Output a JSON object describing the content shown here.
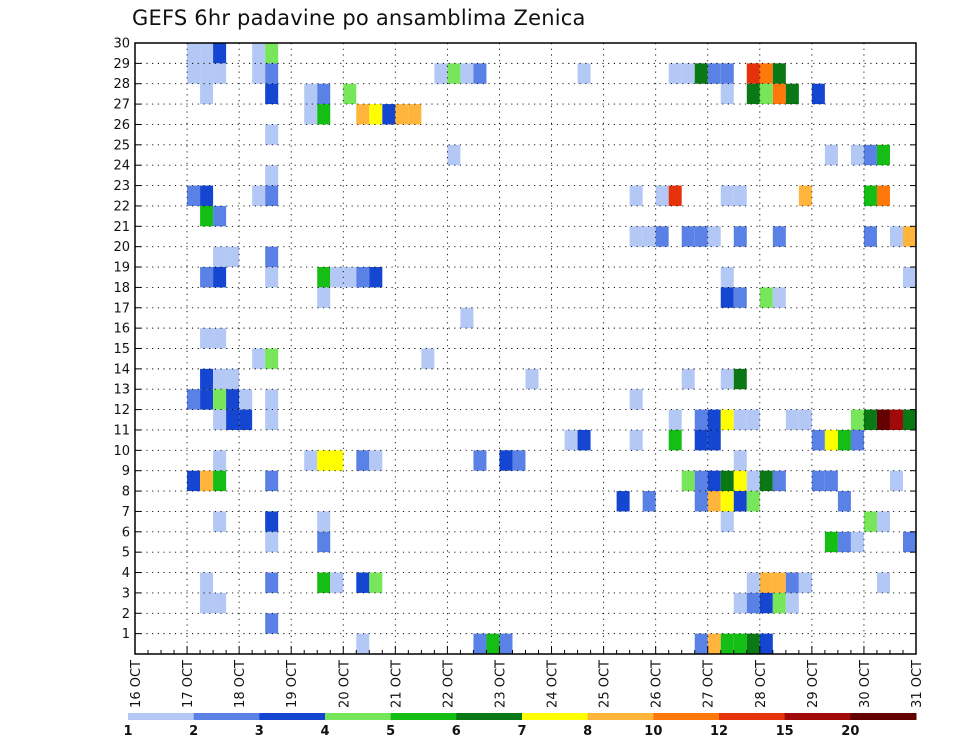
{
  "chart_data": {
    "type": "heatmap",
    "title": "GEFS 6hr padavine po ansamblima Zenica",
    "x_tick_labels": [
      "16 OCT",
      "17 OCT",
      "18 OCT",
      "19 OCT",
      "20 OCT",
      "21 OCT",
      "22 OCT",
      "23 OCT",
      "24 OCT",
      "25 OCT",
      "26 OCT",
      "27 OCT",
      "28 OCT",
      "29 OCT",
      "30 OCT",
      "31 OCT"
    ],
    "y_tick_labels": [
      "1",
      "2",
      "3",
      "4",
      "5",
      "6",
      "7",
      "8",
      "9",
      "10",
      "11",
      "12",
      "13",
      "14",
      "15",
      "16",
      "17",
      "18",
      "19",
      "20",
      "21",
      "22",
      "23",
      "24",
      "25",
      "26",
      "27",
      "28",
      "29",
      "30"
    ],
    "xlim_days": [
      16,
      31
    ],
    "ylim": [
      0,
      30
    ],
    "grid": true,
    "colorbar": {
      "levels": [
        "1",
        "2",
        "3",
        "4",
        "5",
        "6",
        "7",
        "8",
        "10",
        "12",
        "15",
        "20"
      ],
      "colors": [
        "#b4c8f5",
        "#5a82e6",
        "#1446d2",
        "#78e65a",
        "#14be14",
        "#0a7814",
        "#ffff00",
        "#ffb43c",
        "#ff780a",
        "#e6320a",
        "#a00a0a",
        "#640000"
      ]
    },
    "cell_width_days": 0.25,
    "cells": [
      [
        17.0,
        30,
        0
      ],
      [
        17.25,
        30,
        0
      ],
      [
        17.5,
        30,
        2
      ],
      [
        18.25,
        30,
        0
      ],
      [
        18.5,
        30,
        3
      ],
      [
        17.0,
        29,
        0
      ],
      [
        17.25,
        29,
        0
      ],
      [
        17.5,
        29,
        0
      ],
      [
        18.25,
        29,
        0
      ],
      [
        18.5,
        29,
        1
      ],
      [
        21.75,
        29,
        0
      ],
      [
        22.0,
        29,
        3
      ],
      [
        22.25,
        29,
        0
      ],
      [
        22.5,
        29,
        1
      ],
      [
        24.5,
        29,
        0
      ],
      [
        26.25,
        29,
        0
      ],
      [
        26.5,
        29,
        0
      ],
      [
        26.75,
        29,
        5
      ],
      [
        27.0,
        29,
        1
      ],
      [
        27.25,
        29,
        1
      ],
      [
        27.75,
        29,
        9
      ],
      [
        28.0,
        29,
        8
      ],
      [
        28.25,
        29,
        5
      ],
      [
        17.25,
        28,
        0
      ],
      [
        18.5,
        28,
        2
      ],
      [
        19.25,
        28,
        0
      ],
      [
        19.5,
        28,
        1
      ],
      [
        20.0,
        28,
        3
      ],
      [
        27.25,
        28,
        0
      ],
      [
        27.75,
        28,
        5
      ],
      [
        28.0,
        28,
        3
      ],
      [
        28.25,
        28,
        8
      ],
      [
        28.5,
        28,
        5
      ],
      [
        29.0,
        28,
        2
      ],
      [
        19.25,
        27,
        0
      ],
      [
        19.5,
        27,
        4
      ],
      [
        20.25,
        27,
        7
      ],
      [
        20.5,
        27,
        6
      ],
      [
        20.75,
        27,
        2
      ],
      [
        21.0,
        27,
        7
      ],
      [
        21.25,
        27,
        7
      ],
      [
        18.5,
        26,
        0
      ],
      [
        22.0,
        25,
        0
      ],
      [
        29.25,
        25,
        0
      ],
      [
        29.75,
        25,
        0
      ],
      [
        30.0,
        25,
        1
      ],
      [
        30.25,
        25,
        4
      ],
      [
        18.5,
        24,
        0
      ],
      [
        17.0,
        23,
        1
      ],
      [
        17.25,
        23,
        2
      ],
      [
        18.25,
        23,
        0
      ],
      [
        18.5,
        23,
        1
      ],
      [
        25.5,
        23,
        0
      ],
      [
        26.0,
        23,
        0
      ],
      [
        26.25,
        23,
        9
      ],
      [
        27.25,
        23,
        0
      ],
      [
        27.5,
        23,
        0
      ],
      [
        28.75,
        23,
        7
      ],
      [
        30.0,
        23,
        4
      ],
      [
        30.25,
        23,
        8
      ],
      [
        17.25,
        22,
        4
      ],
      [
        17.5,
        22,
        1
      ],
      [
        25.5,
        21,
        0
      ],
      [
        25.75,
        21,
        0
      ],
      [
        26.0,
        21,
        1
      ],
      [
        26.5,
        21,
        1
      ],
      [
        26.75,
        21,
        1
      ],
      [
        27.0,
        21,
        0
      ],
      [
        27.5,
        21,
        1
      ],
      [
        28.25,
        21,
        1
      ],
      [
        30.0,
        21,
        1
      ],
      [
        30.5,
        21,
        0
      ],
      [
        30.75,
        21,
        7
      ],
      [
        17.5,
        20,
        0
      ],
      [
        17.75,
        20,
        0
      ],
      [
        18.5,
        20,
        1
      ],
      [
        17.25,
        19,
        1
      ],
      [
        17.5,
        19,
        2
      ],
      [
        18.5,
        19,
        0
      ],
      [
        19.5,
        19,
        4
      ],
      [
        19.75,
        19,
        0
      ],
      [
        20.0,
        19,
        0
      ],
      [
        20.25,
        19,
        1
      ],
      [
        20.5,
        19,
        2
      ],
      [
        27.25,
        19,
        0
      ],
      [
        30.75,
        19,
        0
      ],
      [
        19.5,
        18,
        0
      ],
      [
        27.25,
        18,
        2
      ],
      [
        27.5,
        18,
        1
      ],
      [
        28.0,
        18,
        3
      ],
      [
        28.25,
        18,
        0
      ],
      [
        22.25,
        17,
        0
      ],
      [
        17.25,
        16,
        0
      ],
      [
        17.5,
        16,
        0
      ],
      [
        18.25,
        15,
        0
      ],
      [
        18.5,
        15,
        3
      ],
      [
        21.5,
        15,
        0
      ],
      [
        17.25,
        14,
        2
      ],
      [
        17.5,
        14,
        0
      ],
      [
        17.75,
        14,
        0
      ],
      [
        23.5,
        14,
        0
      ],
      [
        26.5,
        14,
        0
      ],
      [
        27.25,
        14,
        0
      ],
      [
        27.5,
        14,
        5
      ],
      [
        17.0,
        13,
        1
      ],
      [
        17.25,
        13,
        2
      ],
      [
        17.5,
        13,
        3
      ],
      [
        17.75,
        13,
        2
      ],
      [
        18.0,
        13,
        0
      ],
      [
        18.5,
        13,
        0
      ],
      [
        25.5,
        13,
        0
      ],
      [
        26.25,
        12,
        0
      ],
      [
        29.75,
        12,
        3
      ],
      [
        30.0,
        12,
        5
      ],
      [
        30.25,
        12,
        11
      ],
      [
        30.5,
        12,
        10
      ],
      [
        30.75,
        12,
        5
      ],
      [
        17.5,
        12,
        0
      ],
      [
        17.75,
        12,
        2
      ],
      [
        18.0,
        12,
        2
      ],
      [
        18.5,
        12,
        0
      ],
      [
        26.75,
        12,
        1
      ],
      [
        27.0,
        12,
        2
      ],
      [
        27.25,
        12,
        6
      ],
      [
        27.5,
        12,
        0
      ],
      [
        27.75,
        12,
        0
      ],
      [
        28.5,
        12,
        0
      ],
      [
        28.75,
        12,
        0
      ],
      [
        24.25,
        11,
        0
      ],
      [
        24.5,
        11,
        2
      ],
      [
        25.5,
        11,
        0
      ],
      [
        26.25,
        11,
        4
      ],
      [
        26.75,
        11,
        2
      ],
      [
        27.0,
        11,
        2
      ],
      [
        29.0,
        11,
        1
      ],
      [
        29.25,
        11,
        6
      ],
      [
        29.5,
        11,
        4
      ],
      [
        29.75,
        11,
        1
      ],
      [
        17.5,
        10,
        0
      ],
      [
        19.25,
        10,
        0
      ],
      [
        19.5,
        10,
        6
      ],
      [
        19.75,
        10,
        6
      ],
      [
        20.25,
        10,
        1
      ],
      [
        20.5,
        10,
        0
      ],
      [
        22.5,
        10,
        1
      ],
      [
        23.0,
        10,
        2
      ],
      [
        23.25,
        10,
        1
      ],
      [
        27.5,
        10,
        0
      ],
      [
        17.0,
        9,
        2
      ],
      [
        17.25,
        9,
        7
      ],
      [
        17.5,
        9,
        4
      ],
      [
        18.5,
        9,
        1
      ],
      [
        26.5,
        9,
        3
      ],
      [
        26.75,
        9,
        1
      ],
      [
        27.0,
        9,
        2
      ],
      [
        27.25,
        9,
        5
      ],
      [
        27.5,
        9,
        6
      ],
      [
        27.75,
        9,
        0
      ],
      [
        28.0,
        9,
        5
      ],
      [
        28.25,
        9,
        1
      ],
      [
        29.0,
        9,
        1
      ],
      [
        29.25,
        9,
        1
      ],
      [
        30.5,
        9,
        0
      ],
      [
        25.25,
        8,
        2
      ],
      [
        25.75,
        8,
        1
      ],
      [
        26.75,
        8,
        1
      ],
      [
        27.0,
        8,
        7
      ],
      [
        27.25,
        8,
        6
      ],
      [
        27.5,
        8,
        2
      ],
      [
        27.75,
        8,
        3
      ],
      [
        29.5,
        8,
        1
      ],
      [
        17.5,
        7,
        0
      ],
      [
        18.5,
        7,
        2
      ],
      [
        19.5,
        7,
        0
      ],
      [
        27.25,
        7,
        0
      ],
      [
        30.0,
        7,
        3
      ],
      [
        30.25,
        7,
        0
      ],
      [
        18.5,
        6,
        0
      ],
      [
        19.5,
        6,
        1
      ],
      [
        29.25,
        6,
        4
      ],
      [
        29.5,
        6,
        1
      ],
      [
        29.75,
        6,
        0
      ],
      [
        30.75,
        6,
        1
      ],
      [
        17.25,
        4,
        0
      ],
      [
        18.5,
        4,
        1
      ],
      [
        19.5,
        4,
        4
      ],
      [
        19.75,
        4,
        0
      ],
      [
        20.25,
        4,
        2
      ],
      [
        20.5,
        4,
        3
      ],
      [
        27.75,
        4,
        0
      ],
      [
        28.0,
        4,
        7
      ],
      [
        28.25,
        4,
        7
      ],
      [
        28.5,
        4,
        1
      ],
      [
        28.75,
        4,
        0
      ],
      [
        30.25,
        4,
        0
      ],
      [
        17.25,
        3,
        0
      ],
      [
        17.5,
        3,
        0
      ],
      [
        27.5,
        3,
        0
      ],
      [
        27.75,
        3,
        1
      ],
      [
        28.0,
        3,
        2
      ],
      [
        28.25,
        3,
        3
      ],
      [
        28.5,
        3,
        0
      ],
      [
        18.5,
        2,
        1
      ],
      [
        20.25,
        1,
        0
      ],
      [
        22.5,
        1,
        1
      ],
      [
        22.75,
        1,
        4
      ],
      [
        23.0,
        1,
        1
      ],
      [
        26.75,
        1,
        1
      ],
      [
        27.0,
        1,
        7
      ],
      [
        27.25,
        1,
        4
      ],
      [
        27.5,
        1,
        4
      ],
      [
        27.75,
        1,
        5
      ],
      [
        28.0,
        1,
        2
      ]
    ]
  }
}
